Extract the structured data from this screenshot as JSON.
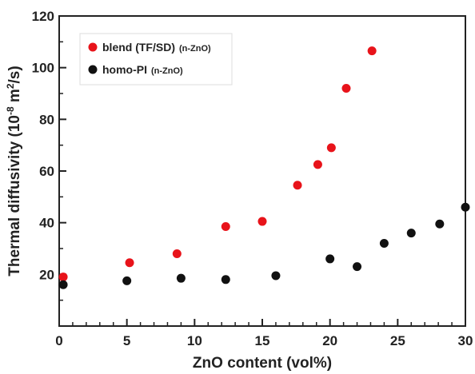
{
  "chart_data": {
    "type": "scatter",
    "xlabel": "ZnO content (vol%)",
    "ylabel_main": "Thermal diffusivity (10",
    "ylabel_exp": "-8",
    "ylabel_mid": " m",
    "ylabel_sup": "2",
    "ylabel_end": "/s)",
    "xlim": [
      0,
      30
    ],
    "ylim": [
      0,
      120
    ],
    "xticks": [
      0,
      5,
      10,
      15,
      20,
      25,
      30
    ],
    "yticks": [
      20,
      40,
      60,
      80,
      100,
      120
    ],
    "grid": false,
    "legend_position": "top-left",
    "series": [
      {
        "name": "blend (TF/SD)",
        "name_suffix": "(n-ZnO)",
        "color": "#e8131a",
        "x": [
          0.3,
          5.2,
          8.7,
          12.3,
          15.0,
          17.6,
          19.1,
          20.1,
          21.2,
          23.1
        ],
        "y": [
          19,
          24.5,
          28,
          38.5,
          40.5,
          54.5,
          62.5,
          69,
          92,
          106.5
        ]
      },
      {
        "name": "homo-PI",
        "name_suffix": "(n-ZnO)",
        "color": "#111111",
        "x": [
          0.3,
          5.0,
          9.0,
          12.3,
          16.0,
          20.0,
          22.0,
          24.0,
          26.0,
          28.1,
          30.0
        ],
        "y": [
          16,
          17.5,
          18.5,
          18,
          19.5,
          26,
          23,
          32,
          36,
          39.5,
          46
        ]
      }
    ]
  }
}
